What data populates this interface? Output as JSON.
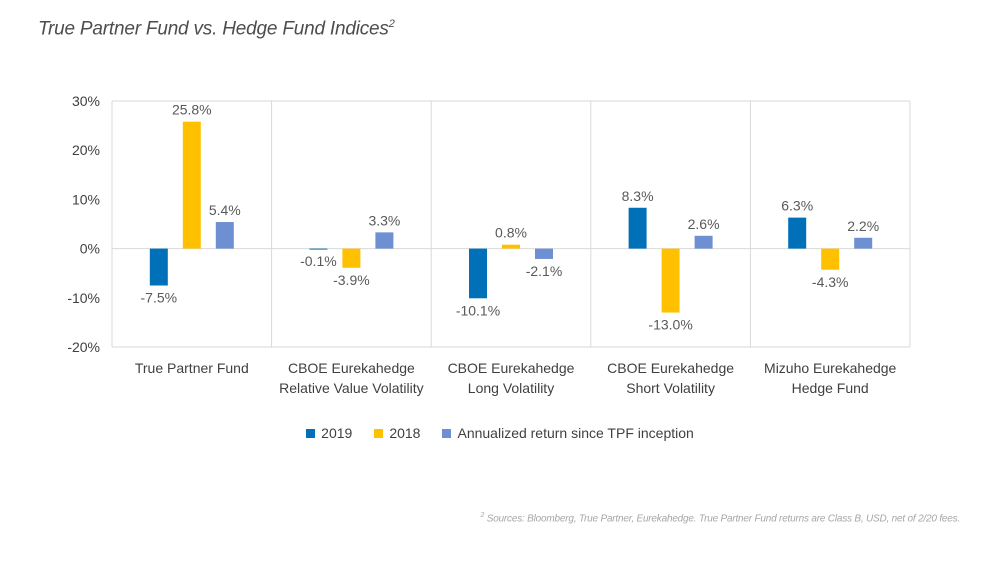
{
  "title": {
    "text": "True Partner Fund vs. Hedge Fund Indices",
    "sup": "2"
  },
  "footnote": {
    "sup": "2",
    "text": " Sources: Bloomberg, True Partner, Eurekahedge. True Partner Fund returns are Class B, USD, net of 2/20 fees."
  },
  "colors": {
    "s2019": "#0070b8",
    "s2018": "#ffc000",
    "annualized": "#6f8fd3",
    "grid": "#d9d9d9"
  },
  "chart_data": {
    "type": "bar",
    "categories": [
      [
        "True Partner Fund"
      ],
      [
        "CBOE Eurekahedge",
        "Relative Value Volatility"
      ],
      [
        "CBOE Eurekahedge",
        "Long Volatility"
      ],
      [
        "CBOE Eurekahedge",
        "Short Volatility"
      ],
      [
        "Mizuho Eurekahedge",
        "Hedge Fund"
      ]
    ],
    "series": [
      {
        "name": "2019",
        "values": [
          -7.5,
          -0.1,
          -10.1,
          8.3,
          6.3
        ],
        "labels": [
          "-7.5%",
          "-0.1%",
          "-10.1%",
          "8.3%",
          "6.3%"
        ]
      },
      {
        "name": "2018",
        "values": [
          25.8,
          -3.9,
          0.8,
          -13.0,
          -4.3
        ],
        "labels": [
          "25.8%",
          "-3.9%",
          "0.8%",
          "-13.0%",
          "-4.3%"
        ]
      },
      {
        "name": "Annualized return since TPF inception",
        "values": [
          5.4,
          3.3,
          -2.1,
          2.6,
          2.2
        ],
        "labels": [
          "5.4%",
          "3.3%",
          "-2.1%",
          "2.6%",
          "2.2%"
        ]
      }
    ],
    "ylim": [
      -20,
      30
    ],
    "yticks": [
      30,
      20,
      10,
      0,
      -10,
      -20
    ],
    "ytick_labels": [
      "30%",
      "20%",
      "10%",
      "0%",
      "-10%",
      "-20%"
    ],
    "legend_position": "bottom",
    "xlabel": "",
    "ylabel": ""
  }
}
